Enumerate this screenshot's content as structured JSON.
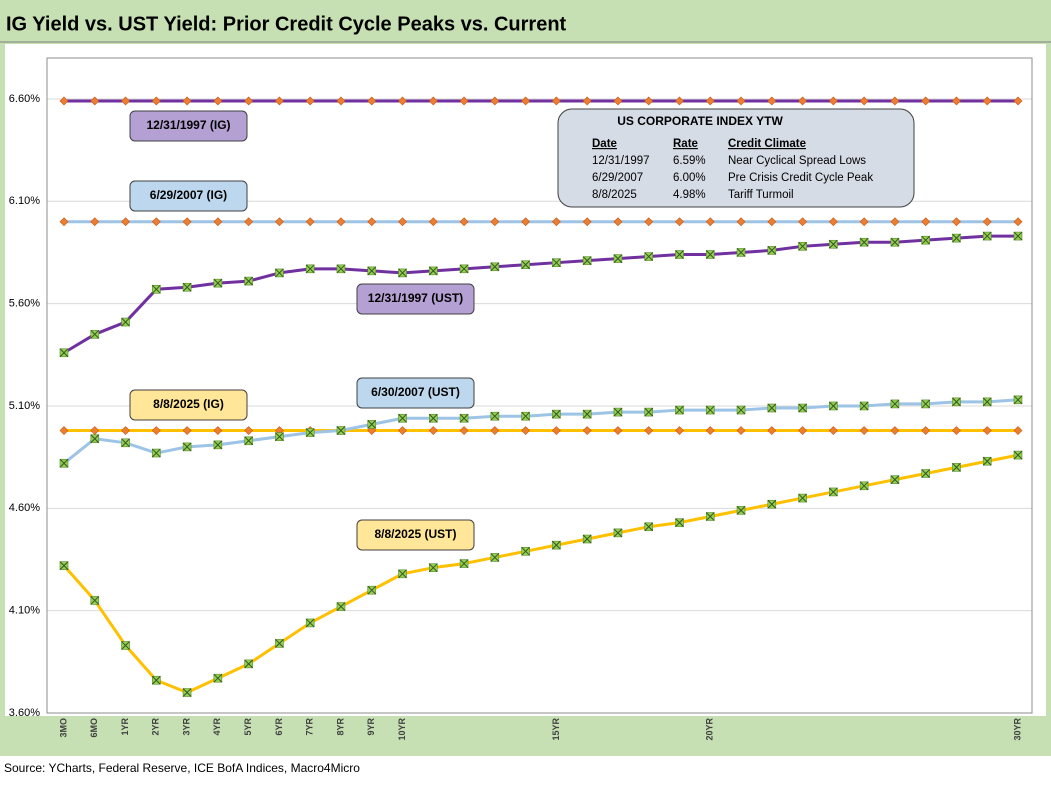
{
  "chart_data": {
    "type": "line",
    "title": "IG Yield vs. UST Yield: Prior Credit Cycle Peaks vs. Current",
    "source": "Source: YCharts, Federal Reserve, ICE BofA Indices, Macro4Micro",
    "categories": [
      "3MO",
      "6MO",
      "1YR",
      "2YR",
      "3YR",
      "4YR",
      "5YR",
      "6YR",
      "7YR",
      "8YR",
      "9YR",
      "10YR",
      null,
      null,
      null,
      null,
      "15YR",
      null,
      null,
      null,
      null,
      "20YR",
      null,
      null,
      null,
      null,
      null,
      null,
      null,
      null,
      null,
      "30YR"
    ],
    "ylim": [
      3.6,
      6.8
    ],
    "yticks": [
      {
        "value": 3.6,
        "label": "3.60%"
      },
      {
        "value": 4.1,
        "label": "4.10%"
      },
      {
        "value": 4.6,
        "label": "4.60%"
      },
      {
        "value": 5.1,
        "label": "5.10%"
      },
      {
        "value": 5.6,
        "label": "5.60%"
      },
      {
        "value": 6.1,
        "label": "6.10%"
      },
      {
        "value": 6.6,
        "label": "6.60%"
      }
    ],
    "grid": true,
    "series": [
      {
        "name": "12/31/1997 (IG)",
        "color": "#7030a0",
        "marker": "diamond",
        "marker_color": "#ed7d31",
        "label_color": "#b4a0d2",
        "values": [
          6.59,
          6.59,
          6.59,
          6.59,
          6.59,
          6.59,
          6.59,
          6.59,
          6.59,
          6.59,
          6.59,
          6.59,
          6.59,
          6.59,
          6.59,
          6.59,
          6.59,
          6.59,
          6.59,
          6.59,
          6.59,
          6.59,
          6.59,
          6.59,
          6.59,
          6.59,
          6.59,
          6.59,
          6.59,
          6.59,
          6.59,
          6.59
        ]
      },
      {
        "name": "6/29/2007 (IG)",
        "color": "#9dc3e6",
        "marker": "diamond",
        "marker_color": "#ed7d31",
        "label_color": "#bdd7ee",
        "values": [
          6.0,
          6.0,
          6.0,
          6.0,
          6.0,
          6.0,
          6.0,
          6.0,
          6.0,
          6.0,
          6.0,
          6.0,
          6.0,
          6.0,
          6.0,
          6.0,
          6.0,
          6.0,
          6.0,
          6.0,
          6.0,
          6.0,
          6.0,
          6.0,
          6.0,
          6.0,
          6.0,
          6.0,
          6.0,
          6.0,
          6.0,
          6.0
        ]
      },
      {
        "name": "8/8/2025 (IG)",
        "color": "#ffc000",
        "marker": "diamond",
        "marker_color": "#ed7d31",
        "label_color": "#ffe699",
        "values": [
          4.98,
          4.98,
          4.98,
          4.98,
          4.98,
          4.98,
          4.98,
          4.98,
          4.98,
          4.98,
          4.98,
          4.98,
          4.98,
          4.98,
          4.98,
          4.98,
          4.98,
          4.98,
          4.98,
          4.98,
          4.98,
          4.98,
          4.98,
          4.98,
          4.98,
          4.98,
          4.98,
          4.98,
          4.98,
          4.98,
          4.98,
          4.98
        ]
      },
      {
        "name": "12/31/1997 (UST)",
        "color": "#7030a0",
        "marker": "x-square",
        "marker_color": "#92d050",
        "label_color": "#b4a0d2",
        "values": [
          5.36,
          5.45,
          5.51,
          5.67,
          5.68,
          5.7,
          5.71,
          5.75,
          5.77,
          5.77,
          5.76,
          5.75,
          5.76,
          5.77,
          5.78,
          5.79,
          5.8,
          5.81,
          5.82,
          5.83,
          5.84,
          5.84,
          5.85,
          5.86,
          5.88,
          5.89,
          5.9,
          5.9,
          5.91,
          5.92,
          5.93,
          5.93
        ]
      },
      {
        "name": "6/30/2007 (UST)",
        "color": "#9dc3e6",
        "marker": "x-square",
        "marker_color": "#92d050",
        "label_color": "#bdd7ee",
        "values": [
          4.82,
          4.94,
          4.92,
          4.87,
          4.9,
          4.91,
          4.93,
          4.95,
          4.97,
          4.98,
          5.01,
          5.04,
          5.04,
          5.04,
          5.05,
          5.05,
          5.06,
          5.06,
          5.07,
          5.07,
          5.08,
          5.08,
          5.08,
          5.09,
          5.09,
          5.1,
          5.1,
          5.11,
          5.11,
          5.12,
          5.12,
          5.13
        ]
      },
      {
        "name": "8/8/2025 (UST)",
        "color": "#ffc000",
        "marker": "x-square",
        "marker_color": "#92d050",
        "label_color": "#ffe699",
        "values": [
          4.32,
          4.15,
          3.93,
          3.76,
          3.7,
          3.77,
          3.84,
          3.94,
          4.04,
          4.12,
          4.2,
          4.28,
          4.31,
          4.33,
          4.36,
          4.39,
          4.42,
          4.45,
          4.48,
          4.51,
          4.53,
          4.56,
          4.59,
          4.62,
          4.65,
          4.68,
          4.71,
          4.74,
          4.77,
          4.8,
          4.83,
          4.86
        ]
      }
    ],
    "info_table": {
      "title": "US CORPORATE  INDEX YTW",
      "columns": [
        "Date",
        "Rate",
        "Credit Climate"
      ],
      "rows": [
        [
          "12/31/1997",
          "6.59%",
          "Near Cyclical Spread Lows"
        ],
        [
          "6/29/2007",
          "6.00%",
          "Pre Crisis Credit Cycle Peak"
        ],
        [
          "8/8/2025",
          "4.98%",
          "Tariff Turmoil"
        ]
      ]
    }
  }
}
